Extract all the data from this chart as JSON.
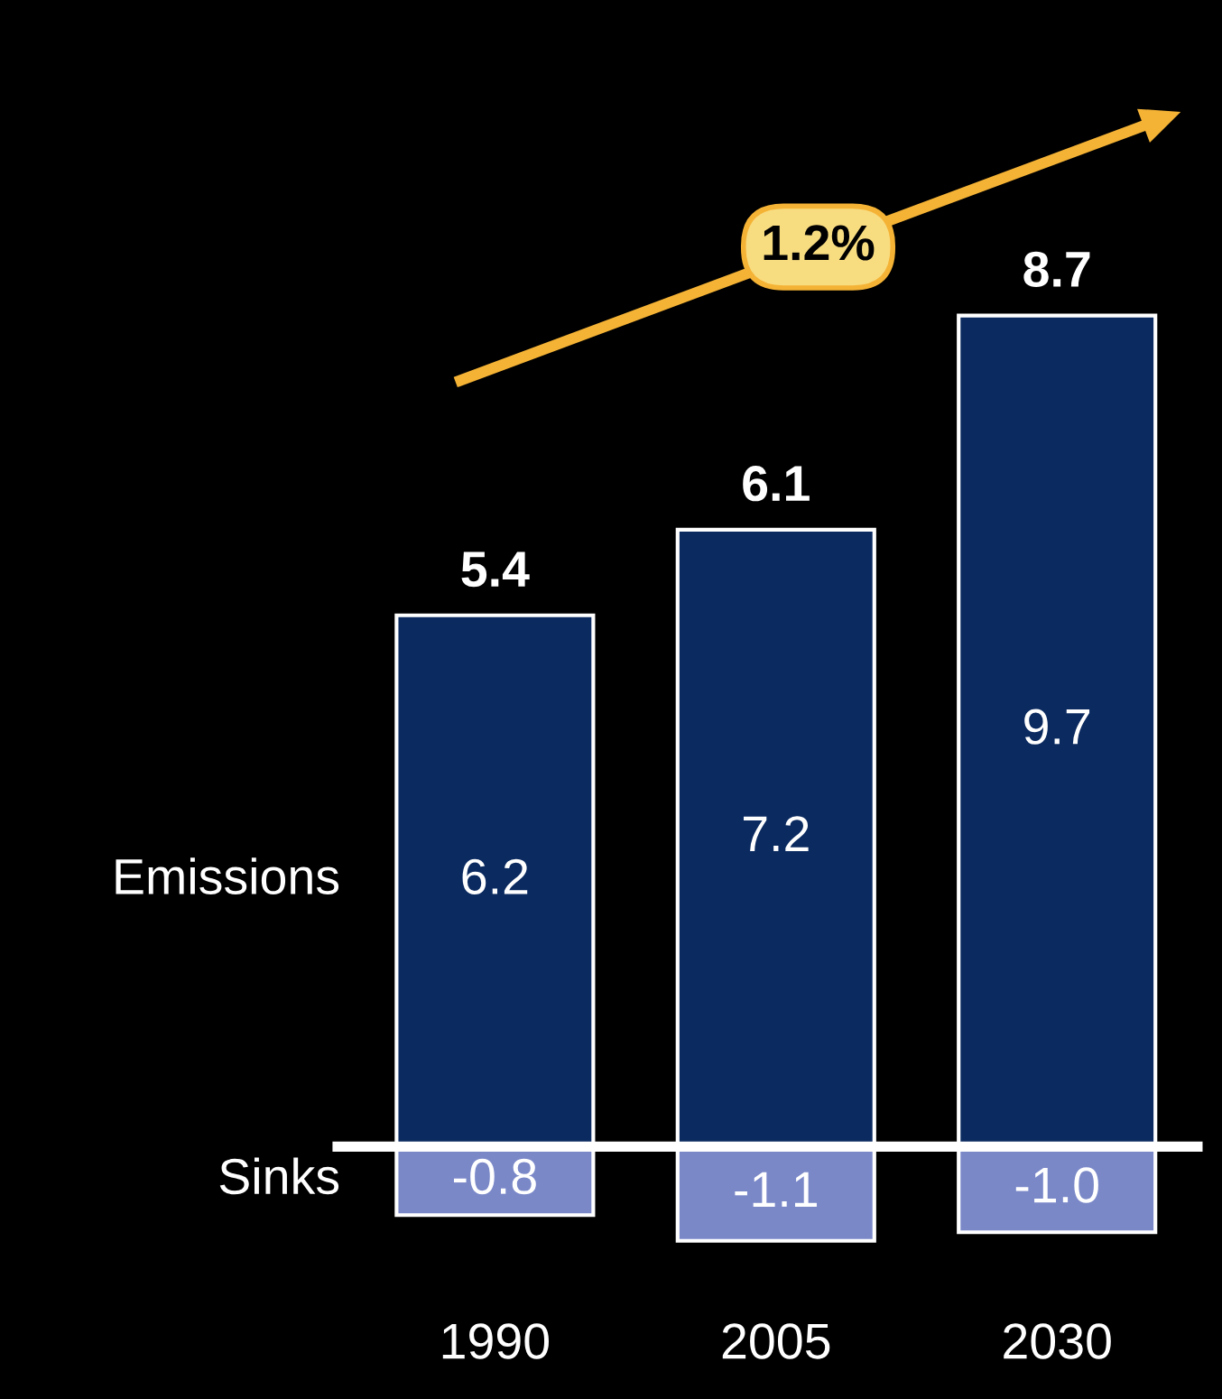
{
  "chart_data": {
    "type": "bar",
    "stacked": true,
    "categories": [
      "1990",
      "2005",
      "2030"
    ],
    "series": [
      {
        "name": "Emissions",
        "color": "#0b2a60",
        "values": [
          6.2,
          7.2,
          9.7
        ],
        "value_labels": [
          "6.2",
          "7.2",
          "9.7"
        ]
      },
      {
        "name": "Sinks",
        "color": "#7a88c8",
        "values": [
          -0.8,
          -1.1,
          -1.0
        ],
        "value_labels": [
          "-0.8",
          "-1.1",
          "-1.0"
        ]
      }
    ],
    "totals": [
      "5.4",
      "6.1",
      "8.7"
    ],
    "annotations": [
      "1.2%"
    ],
    "legend": false,
    "grid": false
  }
}
